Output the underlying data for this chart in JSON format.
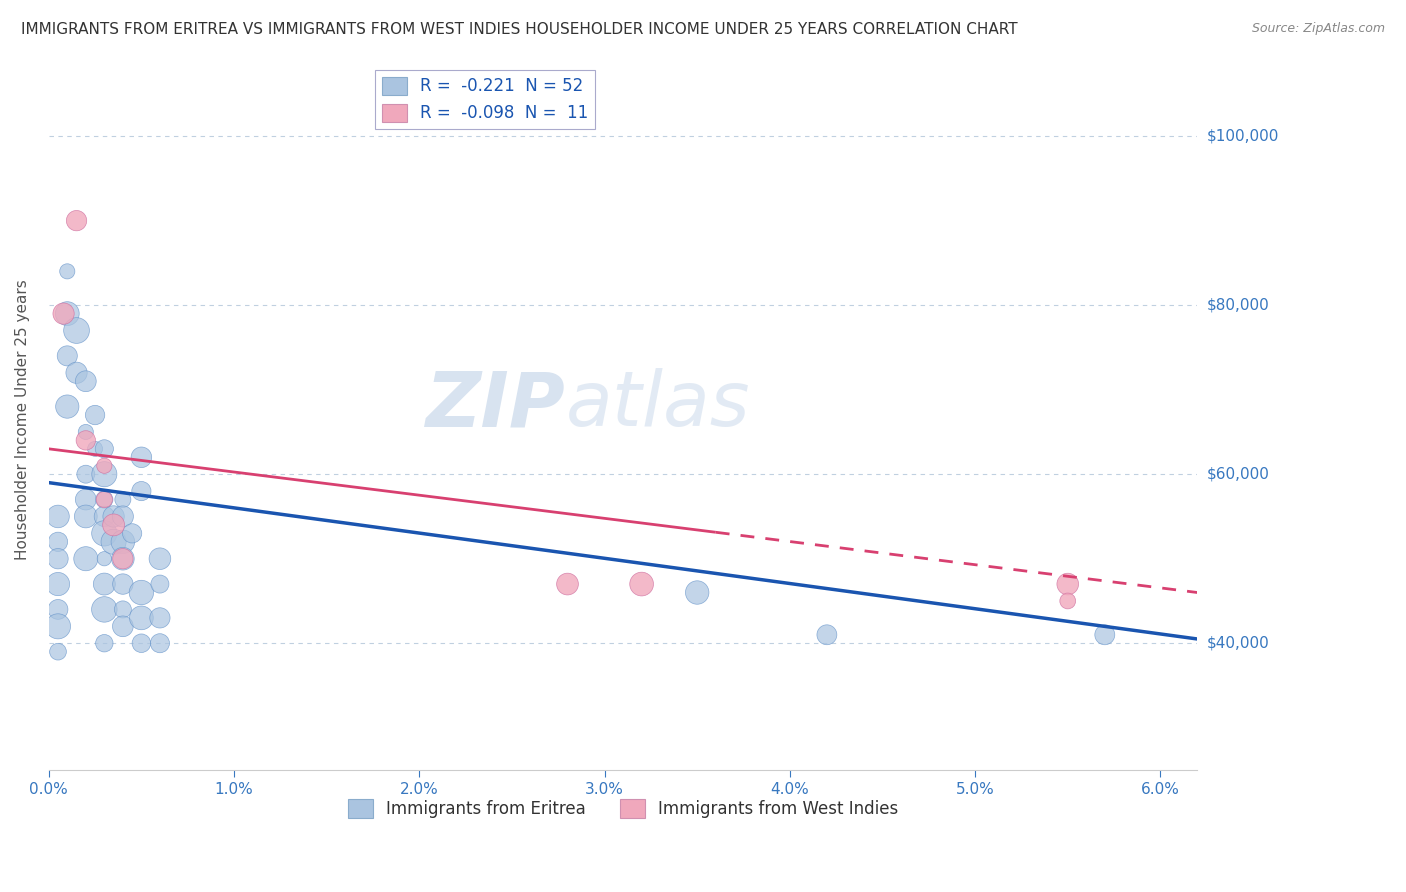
{
  "title": "IMMIGRANTS FROM ERITREA VS IMMIGRANTS FROM WEST INDIES HOUSEHOLDER INCOME UNDER 25 YEARS CORRELATION CHART",
  "source": "Source: ZipAtlas.com",
  "ylabel": "Householder Income Under 25 years",
  "xlabel_ticks": [
    "0.0%",
    "1.0%",
    "2.0%",
    "3.0%",
    "4.0%",
    "5.0%",
    "6.0%"
  ],
  "ytick_labels": [
    "$40,000",
    "$60,000",
    "$80,000",
    "$100,000"
  ],
  "ytick_values": [
    40000,
    60000,
    80000,
    100000
  ],
  "xlim": [
    0.0,
    0.062
  ],
  "ylim": [
    25000,
    108000
  ],
  "legend1_text": "R =  -0.221  N = 52",
  "legend2_text": "R =  -0.098  N =  11",
  "bottom_legend1": "Immigrants from Eritrea",
  "bottom_legend2": "Immigrants from West Indies",
  "eritrea_color": "#aac4e0",
  "west_indies_color": "#f0a8bc",
  "eritrea_line_color": "#1a55b0",
  "west_indies_line_color": "#d84070",
  "watermark_text": "ZIPatlas",
  "background_color": "#ffffff",
  "grid_color": "#c0d0e0",
  "title_color": "#333333",
  "axis_label_color": "#3878c0",
  "eritrea_scatter": [
    [
      0.001,
      84000
    ],
    [
      0.001,
      79000
    ],
    [
      0.001,
      74000
    ],
    [
      0.001,
      68000
    ],
    [
      0.0015,
      77000
    ],
    [
      0.0015,
      72000
    ],
    [
      0.002,
      71000
    ],
    [
      0.002,
      65000
    ],
    [
      0.002,
      60000
    ],
    [
      0.002,
      57000
    ],
    [
      0.002,
      55000
    ],
    [
      0.002,
      50000
    ],
    [
      0.0025,
      67000
    ],
    [
      0.0025,
      63000
    ],
    [
      0.003,
      63000
    ],
    [
      0.003,
      60000
    ],
    [
      0.003,
      57000
    ],
    [
      0.003,
      55000
    ],
    [
      0.003,
      53000
    ],
    [
      0.003,
      50000
    ],
    [
      0.003,
      47000
    ],
    [
      0.003,
      44000
    ],
    [
      0.003,
      40000
    ],
    [
      0.0035,
      55000
    ],
    [
      0.0035,
      52000
    ],
    [
      0.004,
      57000
    ],
    [
      0.004,
      55000
    ],
    [
      0.004,
      52000
    ],
    [
      0.004,
      50000
    ],
    [
      0.004,
      47000
    ],
    [
      0.004,
      44000
    ],
    [
      0.004,
      42000
    ],
    [
      0.0045,
      53000
    ],
    [
      0.005,
      62000
    ],
    [
      0.005,
      58000
    ],
    [
      0.005,
      46000
    ],
    [
      0.005,
      43000
    ],
    [
      0.005,
      40000
    ],
    [
      0.006,
      50000
    ],
    [
      0.006,
      47000
    ],
    [
      0.006,
      43000
    ],
    [
      0.006,
      40000
    ],
    [
      0.0005,
      55000
    ],
    [
      0.0005,
      52000
    ],
    [
      0.0005,
      50000
    ],
    [
      0.0005,
      47000
    ],
    [
      0.0005,
      44000
    ],
    [
      0.0005,
      42000
    ],
    [
      0.0005,
      39000
    ],
    [
      0.035,
      46000
    ],
    [
      0.042,
      41000
    ],
    [
      0.057,
      41000
    ]
  ],
  "west_indies_scatter": [
    [
      0.0008,
      79000
    ],
    [
      0.0015,
      90000
    ],
    [
      0.002,
      64000
    ],
    [
      0.003,
      61000
    ],
    [
      0.003,
      57000
    ],
    [
      0.0035,
      54000
    ],
    [
      0.004,
      50000
    ],
    [
      0.028,
      47000
    ],
    [
      0.032,
      47000
    ],
    [
      0.055,
      47000
    ],
    [
      0.055,
      45000
    ]
  ],
  "eritrea_line_x": [
    0.0,
    0.062
  ],
  "eritrea_line_y": [
    59000,
    40500
  ],
  "west_indies_line_x": [
    0.0,
    0.062
  ],
  "west_indies_line_y": [
    63000,
    46000
  ]
}
